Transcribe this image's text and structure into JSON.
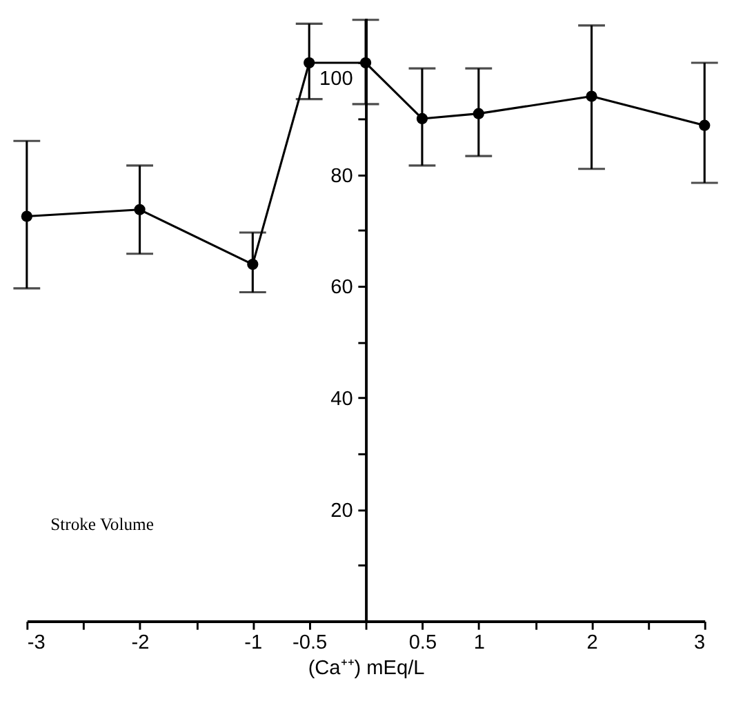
{
  "chart_data": {
    "type": "line",
    "xlabel": "(Ca⁺⁺) mEq/L",
    "x": [
      -3,
      -2,
      -1,
      -0.5,
      0,
      0.5,
      1,
      2,
      3
    ],
    "series": [
      {
        "color": "#000000",
        "values": [
          72.5,
          73.7,
          63.9,
          100,
          100,
          90,
          90.9,
          94,
          88.8
        ],
        "errors": [
          [
            59.6,
            86
          ],
          [
            65.8,
            81.6
          ],
          [
            58.9,
            69.6
          ],
          [
            93.5,
            107
          ],
          [
            92.6,
            107.7
          ],
          [
            81.6,
            99
          ],
          [
            83.3,
            99
          ],
          [
            81,
            106.7
          ],
          [
            78.5,
            100
          ]
        ]
      }
    ],
    "xlim": [
      -3,
      3
    ],
    "xticks": [
      -3,
      {
        "value": -2.5,
        "label": null
      },
      -2,
      {
        "value": -1.5,
        "label": null
      },
      -1,
      -0.5,
      {
        "value": 0,
        "label": null
      },
      0.5,
      1,
      {
        "value": 1.5,
        "label": null
      },
      2,
      {
        "value": 2.5,
        "label": null
      },
      3
    ],
    "ylim": [
      0,
      108
    ],
    "yticks": [
      {
        "value": 10,
        "label": null
      },
      20,
      {
        "value": 30,
        "label": null
      },
      40,
      {
        "value": 50,
        "label": null
      },
      60,
      {
        "value": 70,
        "label": null
      },
      80,
      {
        "value": 90,
        "label": null
      },
      100
    ],
    "annotations": [
      "Stroke Volume"
    ],
    "grid": false,
    "marker": "circle",
    "line_style": "solid",
    "legend": false
  }
}
